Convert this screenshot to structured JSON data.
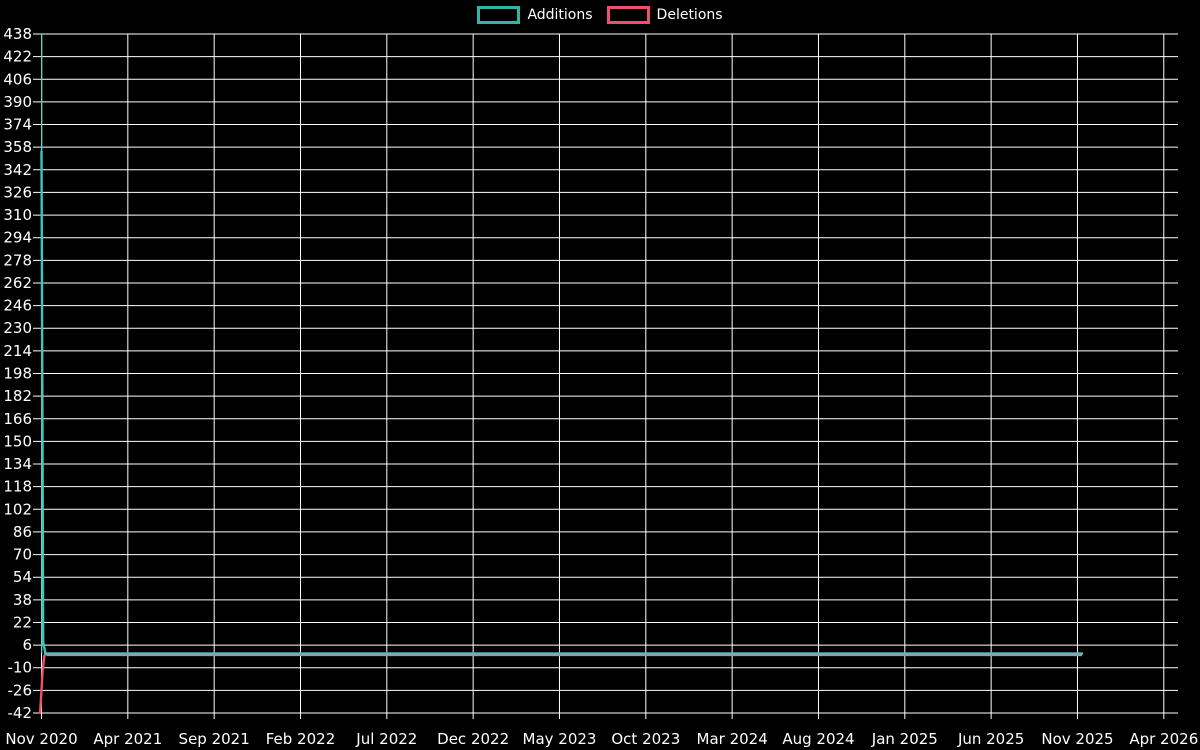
{
  "legend": {
    "items": [
      {
        "label": "Additions",
        "color": "#2fb3ab"
      },
      {
        "label": "Deletions",
        "color": "#ef4f67"
      }
    ]
  },
  "chart_data": {
    "type": "line",
    "title": "",
    "xlabel": "",
    "ylabel": "",
    "x_axis": {
      "tick_labels": [
        "Nov 2020",
        "Apr 2021",
        "Sep 2021",
        "Feb 2022",
        "Jul 2022",
        "Dec 2022",
        "May 2023",
        "Oct 2023",
        "Mar 2024",
        "Aug 2024",
        "Jan 2025",
        "Jun 2025",
        "Nov 2025",
        "Apr 2026"
      ],
      "tick_interval_months": 5,
      "range_start": "2020-11",
      "range_end": "2026-04"
    },
    "y_axis": {
      "min": -42,
      "max": 438,
      "step": 16,
      "tick_labels": [
        "438",
        "422",
        "406",
        "390",
        "374",
        "358",
        "342",
        "326",
        "310",
        "294",
        "278",
        "262",
        "246",
        "230",
        "214",
        "198",
        "182",
        "166",
        "150",
        "134",
        "118",
        "102",
        "86",
        "70",
        "54",
        "38",
        "22",
        "6",
        "-10",
        "-26",
        "-42"
      ]
    },
    "series": [
      {
        "name": "Additions",
        "color": "#3ec6bd",
        "points": [
          [
            "2020-11-01",
            355
          ],
          [
            "2020-11-04",
            8
          ],
          [
            "2020-11-08",
            0
          ],
          [
            "2025-11-09",
            0
          ]
        ]
      },
      {
        "name": "Deletions",
        "color": "#f0506e",
        "points": [
          [
            "2020-10-29",
            -42
          ],
          [
            "2020-11-01",
            -26
          ],
          [
            "2020-11-03",
            -12
          ],
          [
            "2020-11-06",
            -2
          ],
          [
            "2020-11-08",
            0
          ],
          [
            "2025-11-09",
            0
          ]
        ]
      }
    ],
    "layout": {
      "background": "#000000",
      "grid": true,
      "grid_color": "#ffffff",
      "text_color": "#ffffff",
      "legend_position": "top-center",
      "plot_left_edge_color": "#3ec6bd",
      "zero_tail_overlap_color": "#87a1ae"
    }
  }
}
